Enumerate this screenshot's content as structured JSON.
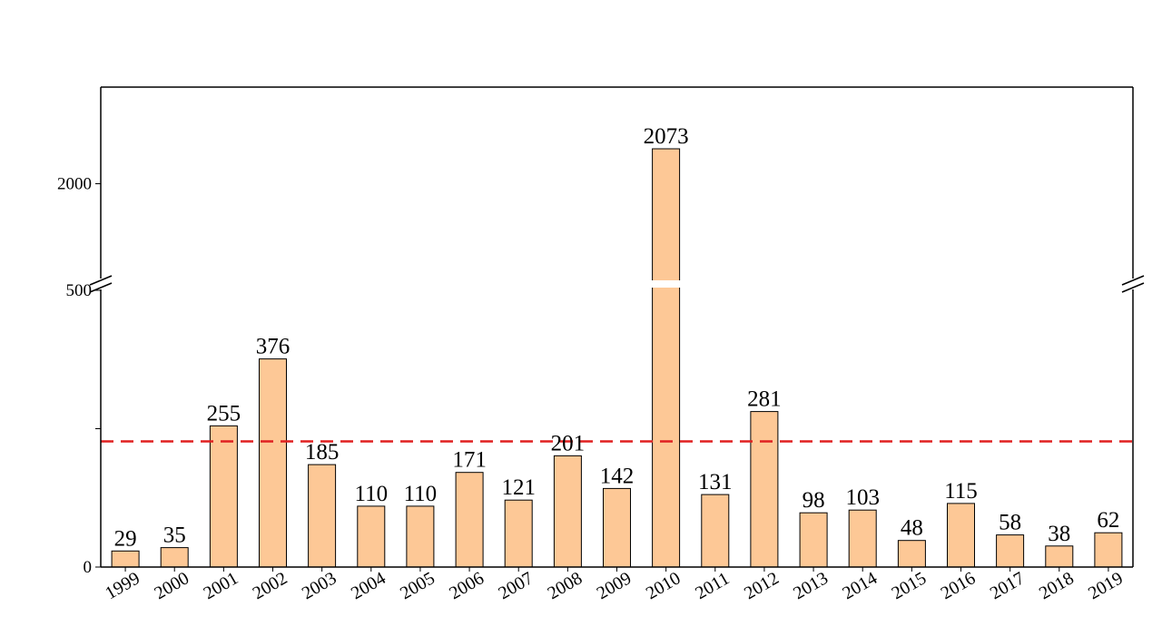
{
  "chart_data": {
    "type": "bar",
    "title": "",
    "xlabel": "",
    "ylabel": "",
    "categories": [
      "1999",
      "2000",
      "2001",
      "2002",
      "2003",
      "2004",
      "2005",
      "2006",
      "2007",
      "2008",
      "2009",
      "2010",
      "2011",
      "2012",
      "2013",
      "2014",
      "2015",
      "2016",
      "2017",
      "2018",
      "2019"
    ],
    "values": [
      29,
      35,
      255,
      376,
      185,
      110,
      110,
      171,
      121,
      201,
      142,
      2073,
      131,
      281,
      98,
      103,
      48,
      115,
      58,
      38,
      62
    ],
    "data_labels": [
      "29",
      "35",
      "255",
      "376",
      "185",
      "110",
      "110",
      "171",
      "121",
      "201",
      "142",
      "2073",
      "131",
      "281",
      "98",
      "103",
      "48",
      "115",
      "58",
      "38",
      "62"
    ],
    "y_axis": {
      "broken": true,
      "lower_segment_range": [
        0,
        500
      ],
      "upper_segment_range": [
        1800,
        2200
      ],
      "tick_labels": [
        "0",
        "500",
        "2000"
      ],
      "tick_values": [
        0,
        500,
        2000
      ]
    },
    "reference_line": {
      "value": 227,
      "style": "dashed",
      "color": "#e02020"
    },
    "bar_color": "#fdc896",
    "bar_edge_color": "#000000",
    "grid": false,
    "legend": "none"
  }
}
